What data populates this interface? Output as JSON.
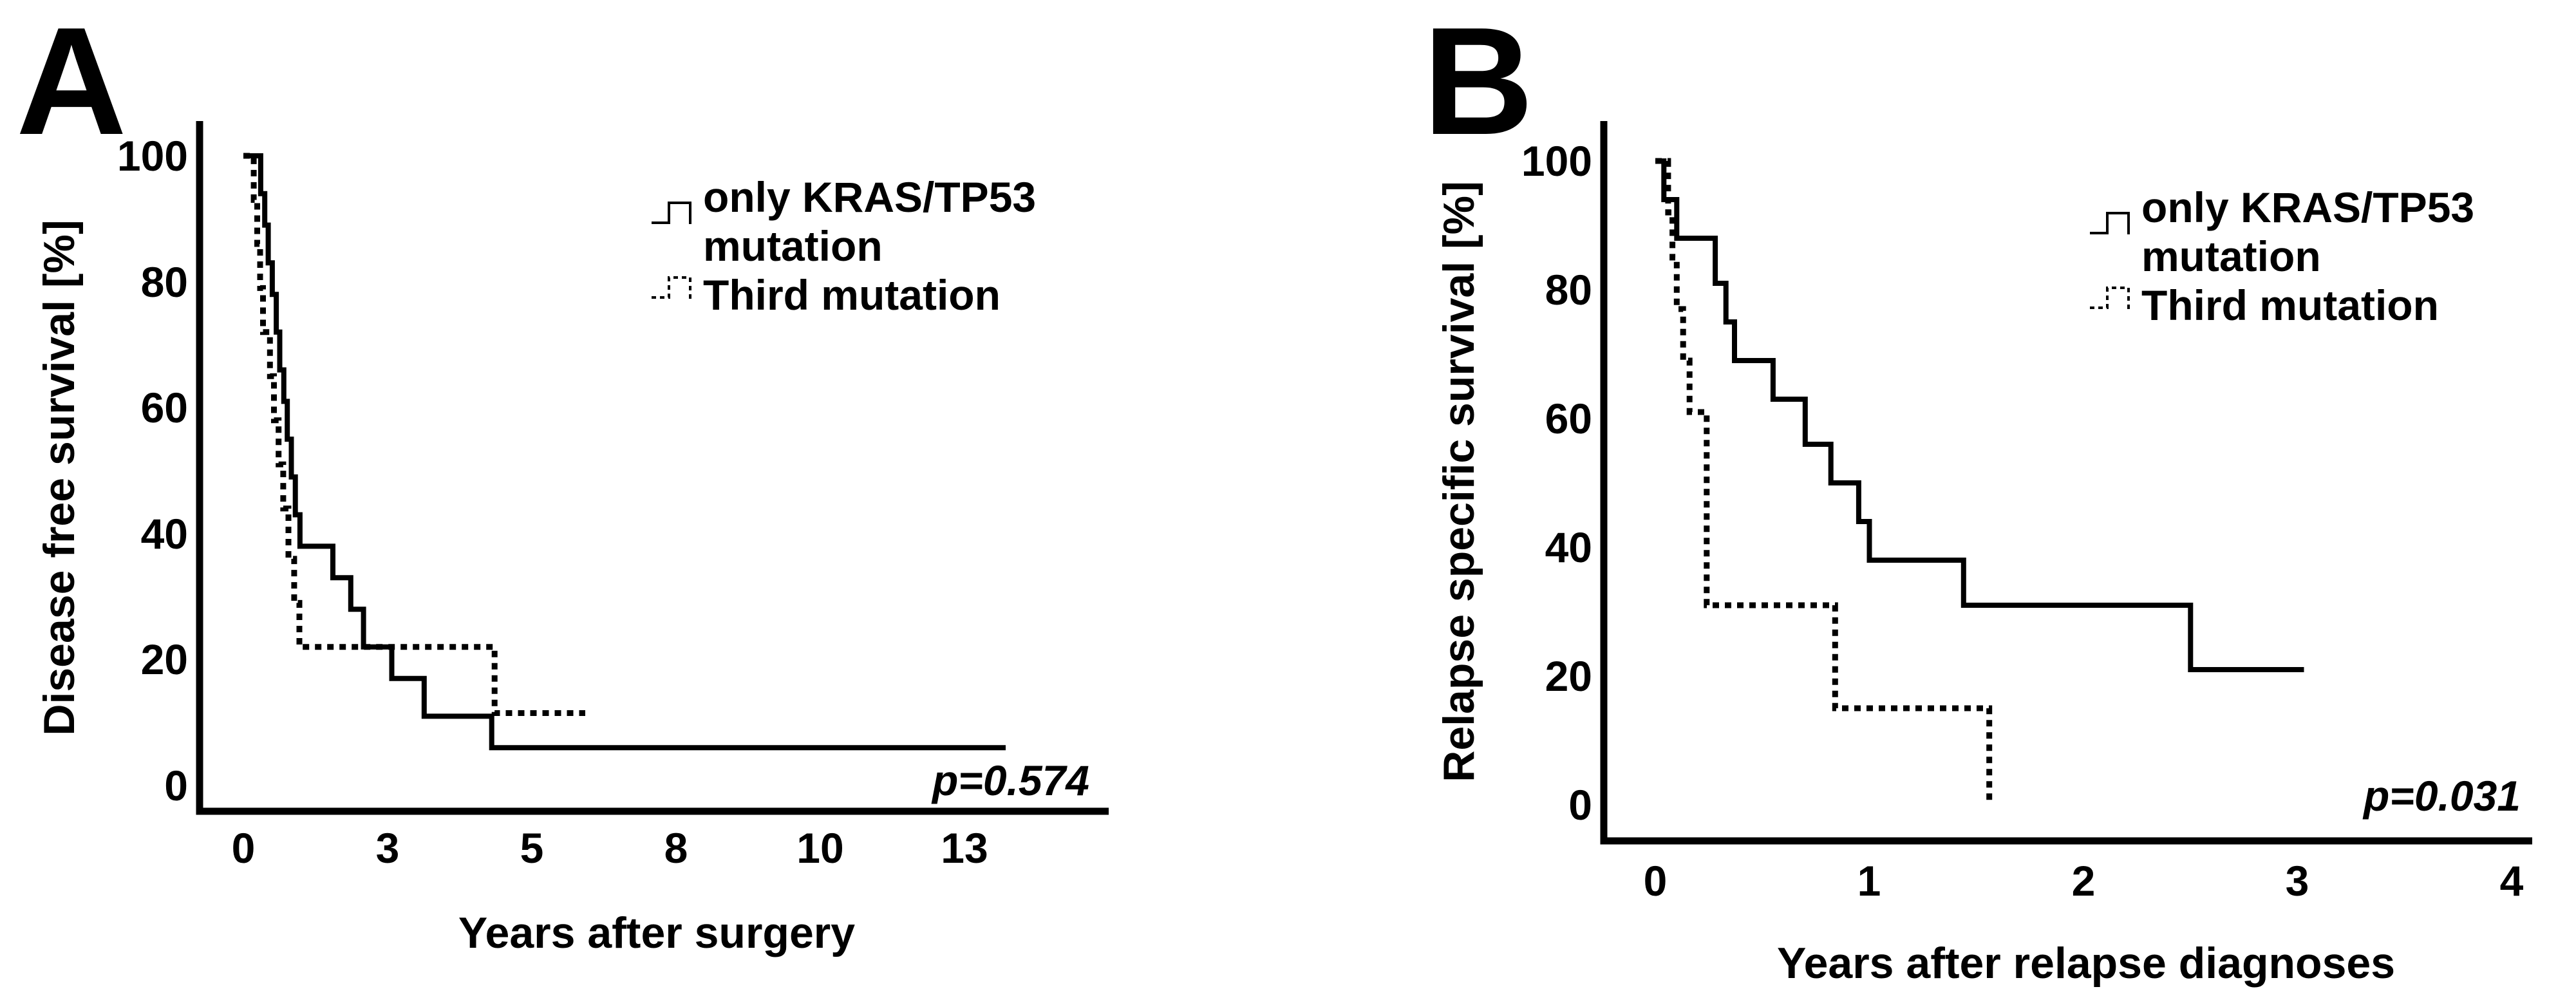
{
  "colors": {
    "line": "#000000",
    "background": "#ffffff"
  },
  "chart_data": [
    {
      "type": "line",
      "panel": "A",
      "chart_kind": "kaplan-meier-step",
      "xlabel": "Years after surgery",
      "ylabel": "Disease free survival [%]",
      "p_value": "p=0.574",
      "x_ticks": [
        "0",
        "3",
        "5",
        "8",
        "10",
        "13"
      ],
      "y_ticks": [
        "100",
        "80",
        "60",
        "40",
        "20",
        "0"
      ],
      "ylim": [
        0,
        100
      ],
      "xlim": [
        0,
        15
      ],
      "grid": "off",
      "legend_position": "upper-right-inside",
      "legend": [
        {
          "name": "only KRAS/TP53 mutation",
          "line_style": "solid"
        },
        {
          "name": "Third mutation",
          "line_style": "dotted"
        }
      ],
      "series": [
        {
          "name": "only KRAS/TP53 mutation",
          "line_style": "solid",
          "start": [
            0,
            100
          ],
          "steps": [
            [
              0.3,
              94
            ],
            [
              0.37,
              89
            ],
            [
              0.43,
              83
            ],
            [
              0.5,
              78
            ],
            [
              0.57,
              72
            ],
            [
              0.63,
              66
            ],
            [
              0.7,
              61
            ],
            [
              0.76,
              55
            ],
            [
              0.83,
              49
            ],
            [
              0.9,
              43
            ],
            [
              0.98,
              38
            ],
            [
              1.55,
              33
            ],
            [
              1.86,
              28
            ],
            [
              2.08,
              22
            ],
            [
              2.57,
              17
            ],
            [
              3.13,
              11
            ],
            [
              4.3,
              6
            ]
          ],
          "end_x": 13.2
        },
        {
          "name": "Third mutation",
          "line_style": "dotted",
          "start": [
            0,
            100
          ],
          "steps": [
            [
              0.18,
              93
            ],
            [
              0.24,
              86
            ],
            [
              0.29,
              79
            ],
            [
              0.34,
              72
            ],
            [
              0.46,
              65
            ],
            [
              0.53,
              58
            ],
            [
              0.61,
              51
            ],
            [
              0.69,
              44
            ],
            [
              0.78,
              36
            ],
            [
              0.88,
              29
            ],
            [
              0.97,
              22
            ],
            [
              4.35,
              11.5
            ]
          ],
          "end_x": 5.92
        }
      ]
    },
    {
      "type": "line",
      "panel": "B",
      "chart_kind": "kaplan-meier-step",
      "xlabel": "Years after relapse diagnoses",
      "ylabel": "Relapse specific survival [%]",
      "p_value": "p=0.031",
      "x_ticks": [
        "0",
        "1",
        "2",
        "3",
        "4"
      ],
      "y_ticks": [
        "100",
        "80",
        "60",
        "40",
        "20",
        "0"
      ],
      "ylim": [
        0,
        100
      ],
      "xlim": [
        0,
        4.35
      ],
      "grid": "off",
      "legend_position": "upper-right-inside",
      "legend": [
        {
          "name": "only KRAS/TP53 mutation",
          "line_style": "solid"
        },
        {
          "name": "Third mutation",
          "line_style": "dotted"
        }
      ],
      "series": [
        {
          "name": "only KRAS/TP53 mutation",
          "line_style": "solid",
          "start": [
            0,
            100
          ],
          "steps": [
            [
              0.04,
              94
            ],
            [
              0.1,
              88
            ],
            [
              0.28,
              81
            ],
            [
              0.33,
              75
            ],
            [
              0.37,
              69
            ],
            [
              0.55,
              63
            ],
            [
              0.7,
              56
            ],
            [
              0.82,
              50
            ],
            [
              0.95,
              44
            ],
            [
              1.0,
              38
            ],
            [
              1.44,
              31
            ],
            [
              2.5,
              21
            ]
          ],
          "end_x": 3.03
        },
        {
          "name": "Third mutation",
          "line_style": "dotted",
          "start": [
            0,
            100
          ],
          "steps": [
            [
              0.06,
              92
            ],
            [
              0.08,
              85
            ],
            [
              0.1,
              77
            ],
            [
              0.13,
              69
            ],
            [
              0.16,
              61
            ],
            [
              0.24,
              31
            ],
            [
              0.84,
              15
            ],
            [
              1.56,
              0
            ]
          ],
          "end_x": 1.56
        }
      ]
    }
  ]
}
